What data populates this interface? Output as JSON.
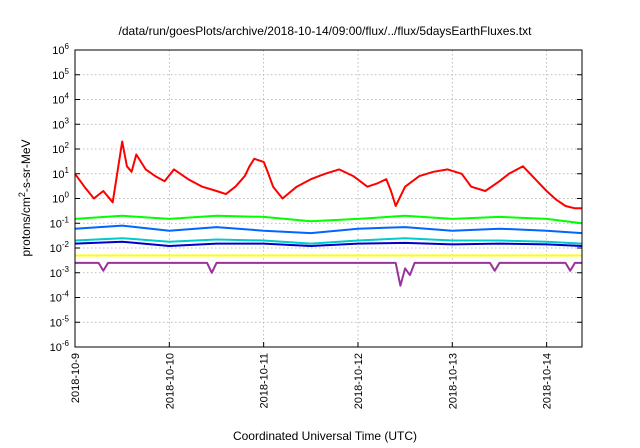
{
  "chart_data": {
    "type": "line",
    "title": "/data/run/goesPlots/archive/2018-10-14/09:00/flux/../flux/5daysEarthFluxes.txt",
    "xlabel": "Coordinated Universal Time (UTC)",
    "ylabel": {
      "base": "protons/cm",
      "sup": "2",
      "rest": "-s-sr-MeV"
    },
    "x_ticks": [
      "2018-10-9",
      "2018-10-10",
      "2018-10-11",
      "2018-10-12",
      "2018-10-13",
      "2018-10-14"
    ],
    "xlim": [
      "2018-10-09T00:00",
      "2018-10-14T09:00"
    ],
    "y_scale": "log",
    "ylim": [
      1e-06,
      1000000.0
    ],
    "y_ticks": [
      {
        "base": "10",
        "exp": "6"
      },
      {
        "base": "10",
        "exp": "5"
      },
      {
        "base": "10",
        "exp": "4"
      },
      {
        "base": "10",
        "exp": "3"
      },
      {
        "base": "10",
        "exp": "2"
      },
      {
        "base": "10",
        "exp": "1"
      },
      {
        "base": "10",
        "exp": "0"
      },
      {
        "base": "10",
        "exp": "-1"
      },
      {
        "base": "10",
        "exp": "-2"
      },
      {
        "base": "10",
        "exp": "-3"
      },
      {
        "base": "10",
        "exp": "-4"
      },
      {
        "base": "10",
        "exp": "-5"
      },
      {
        "base": "10",
        "exp": "-6"
      }
    ],
    "grid": true,
    "series": [
      {
        "color": "#ff0000",
        "x": [
          0,
          0.1,
          0.2,
          0.3,
          0.4,
          0.5,
          0.55,
          0.6,
          0.65,
          0.75,
          0.85,
          0.95,
          1.05,
          1.2,
          1.35,
          1.5,
          1.6,
          1.7,
          1.8,
          1.85,
          1.9,
          2.0,
          2.05,
          2.1,
          2.2,
          2.35,
          2.5,
          2.65,
          2.8,
          2.95,
          3.1,
          3.2,
          3.3,
          3.35,
          3.4,
          3.5,
          3.65,
          3.8,
          3.95,
          4.1,
          4.2,
          4.35,
          4.5,
          4.6,
          4.75,
          4.9,
          5.0,
          5.1,
          5.2,
          5.3,
          5.375
        ],
        "y": [
          10,
          3,
          1,
          2,
          0.7,
          200,
          20,
          12,
          60,
          15,
          8,
          5,
          15,
          6,
          3,
          2,
          1.5,
          3,
          8,
          20,
          40,
          30,
          10,
          3,
          1,
          3,
          6,
          10,
          15,
          8,
          3,
          4,
          6,
          2,
          0.5,
          3,
          8,
          12,
          15,
          10,
          3,
          2,
          5,
          10,
          20,
          5,
          2,
          0.9,
          0.5,
          0.4,
          0.4
        ]
      },
      {
        "color": "#00ff00",
        "x": [
          0,
          0.5,
          1.0,
          1.5,
          2.0,
          2.5,
          3.0,
          3.5,
          4.0,
          4.5,
          5.0,
          5.375
        ],
        "y": [
          0.15,
          0.2,
          0.15,
          0.2,
          0.18,
          0.12,
          0.15,
          0.2,
          0.15,
          0.18,
          0.15,
          0.1
        ]
      },
      {
        "color": "#0066ff",
        "x": [
          0,
          0.5,
          1.0,
          1.5,
          2.0,
          2.5,
          3.0,
          3.5,
          4.0,
          4.5,
          5.0,
          5.375
        ],
        "y": [
          0.06,
          0.08,
          0.05,
          0.07,
          0.05,
          0.04,
          0.06,
          0.07,
          0.05,
          0.06,
          0.05,
          0.04
        ]
      },
      {
        "color": "#00cccc",
        "x": [
          0,
          0.5,
          1.0,
          1.5,
          2.0,
          2.5,
          3.0,
          3.5,
          4.0,
          4.5,
          5.0,
          5.375
        ],
        "y": [
          0.02,
          0.025,
          0.018,
          0.022,
          0.02,
          0.015,
          0.02,
          0.025,
          0.02,
          0.02,
          0.018,
          0.015
        ]
      },
      {
        "color": "#0000cc",
        "x": [
          0,
          0.5,
          1.0,
          1.5,
          2.0,
          2.5,
          3.0,
          3.5,
          4.0,
          4.5,
          5.0,
          5.375
        ],
        "y": [
          0.015,
          0.018,
          0.012,
          0.015,
          0.015,
          0.012,
          0.015,
          0.016,
          0.014,
          0.015,
          0.014,
          0.012
        ]
      },
      {
        "color": "#ffff00",
        "x": [
          0,
          1.0,
          2.0,
          3.0,
          4.0,
          5.0,
          5.375
        ],
        "y": [
          0.005,
          0.005,
          0.005,
          0.005,
          0.005,
          0.005,
          0.005
        ]
      },
      {
        "color": "#993399",
        "x": [
          0,
          0.25,
          0.3,
          0.35,
          1.4,
          1.45,
          1.5,
          2.5,
          3.4,
          3.45,
          3.5,
          3.55,
          3.6,
          4.2,
          4.4,
          4.45,
          4.5,
          5.0,
          5.2,
          5.25,
          5.3,
          5.375
        ],
        "y": [
          0.0025,
          0.0025,
          0.0012,
          0.0025,
          0.0025,
          0.001,
          0.0025,
          0.0025,
          0.0025,
          0.0003,
          0.0015,
          0.0008,
          0.0025,
          0.0025,
          0.0025,
          0.0012,
          0.0025,
          0.0025,
          0.0025,
          0.0012,
          0.0025,
          0.0025
        ]
      }
    ]
  }
}
